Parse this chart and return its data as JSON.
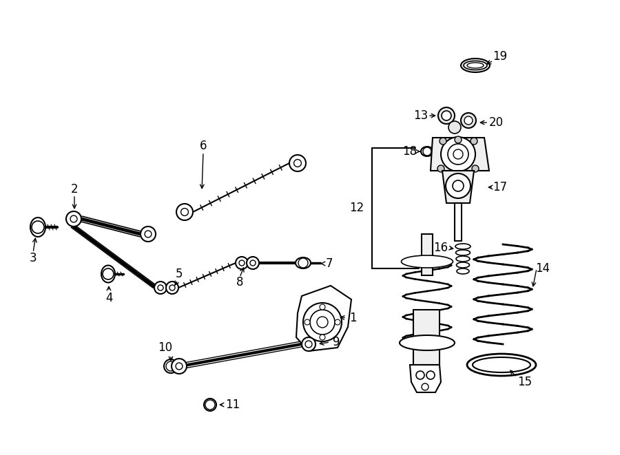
{
  "bg_color": "#ffffff",
  "line_color": "#000000",
  "figsize": [
    9.0,
    6.61
  ],
  "dpi": 100
}
